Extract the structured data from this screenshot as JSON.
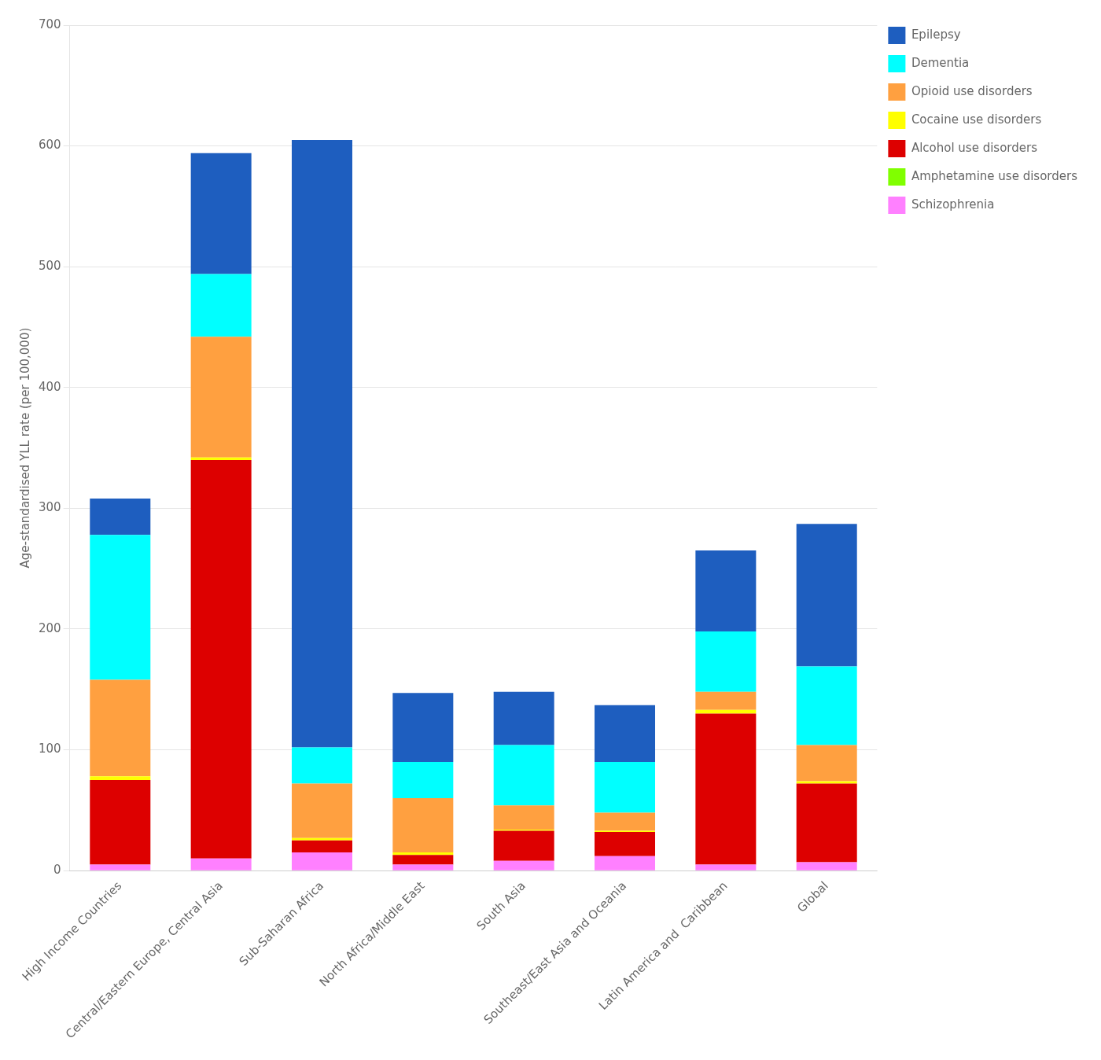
{
  "chart_data": {
    "type": "bar",
    "stacked": true,
    "categories": [
      "High Income Countries",
      "Central/Eastern Europe, Central Asia",
      "Sub-Saharan Africa",
      "North Africa/Middle East",
      "South Asia",
      "Southeast/East Asia and Oceania",
      "Latin America and  Caribbean",
      "Global"
    ],
    "series": [
      {
        "name": "Schizophrenia",
        "color": "#FF80FF",
        "values": [
          5,
          10,
          15,
          5,
          8,
          12,
          5,
          7
        ]
      },
      {
        "name": "Amphetamine use disorders",
        "color": "#80FF00",
        "values": [
          0,
          0,
          0,
          0,
          0,
          0,
          0,
          0
        ]
      },
      {
        "name": "Alcohol use disorders",
        "color": "#DD0000",
        "values": [
          70,
          330,
          10,
          8,
          25,
          20,
          125,
          65
        ]
      },
      {
        "name": "Cocaine use disorders",
        "color": "#FFFF00",
        "values": [
          3,
          2,
          2,
          2,
          1,
          1,
          3,
          2
        ]
      },
      {
        "name": "Opioid use disorders",
        "color": "#FFA040",
        "values": [
          80,
          100,
          45,
          45,
          20,
          15,
          15,
          30
        ]
      },
      {
        "name": "Dementia",
        "color": "#00FFFF",
        "values": [
          120,
          52,
          30,
          30,
          50,
          42,
          50,
          65
        ]
      },
      {
        "name": "Epilepsy",
        "color": "#1E5EBF",
        "values": [
          30,
          100,
          503,
          57,
          44,
          47,
          67,
          118
        ]
      }
    ],
    "ylabel": "Age-standardised YLL rate (per 100,000)",
    "ylim": [
      0,
      700
    ],
    "yticks": [
      0,
      100,
      200,
      300,
      400,
      500,
      600,
      700
    ],
    "grid": true,
    "legend": "upper right"
  }
}
